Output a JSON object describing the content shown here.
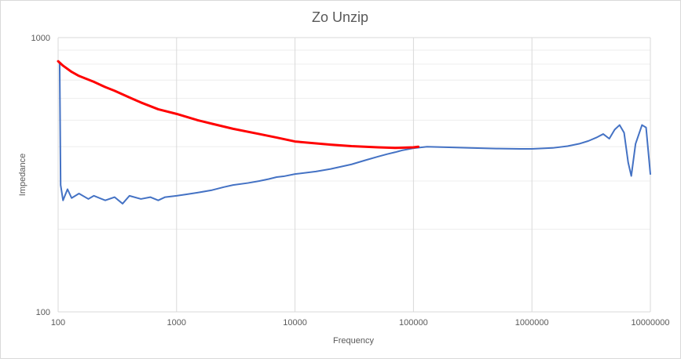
{
  "chart_data": {
    "type": "line",
    "title": "Zo Unzip",
    "xlabel": "Frequency",
    "ylabel": "Impedance",
    "x_scale": "log",
    "y_scale": "log",
    "xlim": [
      100,
      10000000
    ],
    "ylim": [
      100,
      1000
    ],
    "x_ticks": [
      "100",
      "1000",
      "10000",
      "100000",
      "1000000",
      "10000000"
    ],
    "y_ticks": [
      "100",
      "1000"
    ],
    "grid": "major and minor",
    "legend": "none",
    "series": [
      {
        "color": "#4472c4",
        "points": [
          [
            100,
            820
          ],
          [
            103,
            810
          ],
          [
            105,
            290
          ],
          [
            110,
            255
          ],
          [
            120,
            280
          ],
          [
            130,
            260
          ],
          [
            150,
            270
          ],
          [
            180,
            258
          ],
          [
            200,
            265
          ],
          [
            250,
            255
          ],
          [
            300,
            262
          ],
          [
            350,
            248
          ],
          [
            400,
            265
          ],
          [
            500,
            258
          ],
          [
            600,
            262
          ],
          [
            700,
            255
          ],
          [
            800,
            262
          ],
          [
            1000,
            265
          ],
          [
            1200,
            268
          ],
          [
            1500,
            272
          ],
          [
            2000,
            278
          ],
          [
            2500,
            285
          ],
          [
            3000,
            290
          ],
          [
            4000,
            295
          ],
          [
            5000,
            300
          ],
          [
            6000,
            305
          ],
          [
            7000,
            310
          ],
          [
            8000,
            312
          ],
          [
            10000,
            318
          ],
          [
            15000,
            325
          ],
          [
            20000,
            332
          ],
          [
            30000,
            345
          ],
          [
            40000,
            358
          ],
          [
            50000,
            368
          ],
          [
            60000,
            376
          ],
          [
            70000,
            382
          ],
          [
            80000,
            388
          ],
          [
            100000,
            395
          ],
          [
            130000,
            400
          ],
          [
            200000,
            398
          ],
          [
            300000,
            396
          ],
          [
            500000,
            394
          ],
          [
            800000,
            393
          ],
          [
            1000000,
            393
          ],
          [
            1500000,
            396
          ],
          [
            2000000,
            402
          ],
          [
            2500000,
            410
          ],
          [
            3000000,
            420
          ],
          [
            3500000,
            432
          ],
          [
            4000000,
            445
          ],
          [
            4500000,
            428
          ],
          [
            5000000,
            462
          ],
          [
            5500000,
            480
          ],
          [
            6000000,
            450
          ],
          [
            6500000,
            350
          ],
          [
            6900000,
            313
          ],
          [
            7500000,
            410
          ],
          [
            8500000,
            480
          ],
          [
            9200000,
            470
          ],
          [
            10000000,
            318
          ]
        ]
      },
      {
        "color": "#ff0000",
        "points": [
          [
            100,
            820
          ],
          [
            110,
            790
          ],
          [
            130,
            750
          ],
          [
            150,
            725
          ],
          [
            200,
            690
          ],
          [
            250,
            660
          ],
          [
            300,
            640
          ],
          [
            400,
            605
          ],
          [
            500,
            580
          ],
          [
            700,
            548
          ],
          [
            1000,
            527
          ],
          [
            1500,
            500
          ],
          [
            2000,
            485
          ],
          [
            3000,
            465
          ],
          [
            5000,
            445
          ],
          [
            7000,
            432
          ],
          [
            10000,
            418
          ],
          [
            20000,
            407
          ],
          [
            30000,
            402
          ],
          [
            50000,
            398
          ],
          [
            70000,
            396
          ],
          [
            100000,
            398
          ],
          [
            110000,
            400
          ]
        ]
      }
    ]
  }
}
